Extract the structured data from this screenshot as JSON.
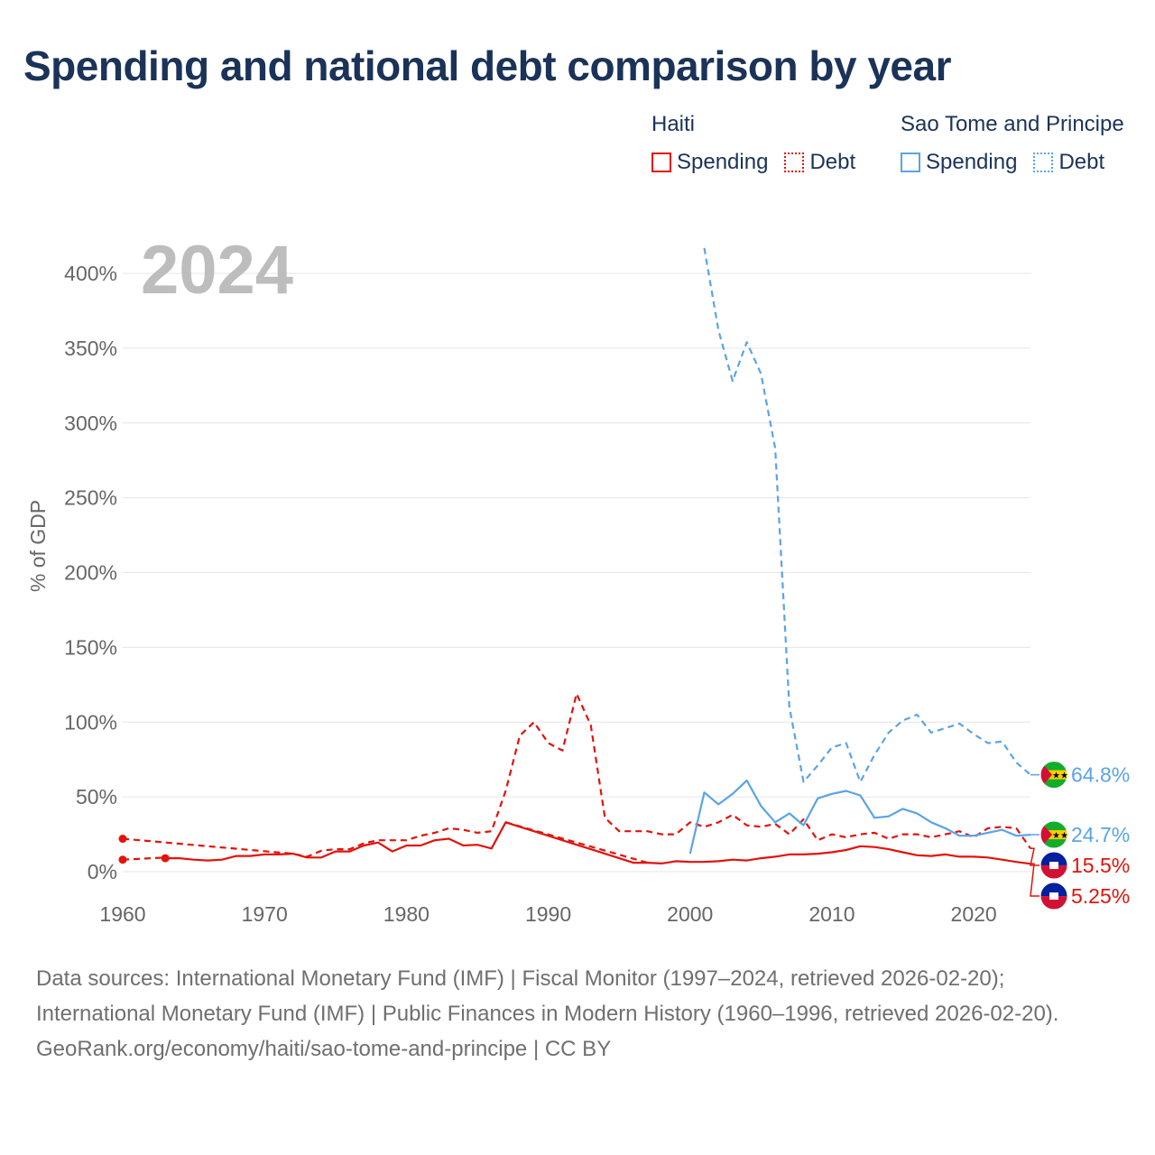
{
  "chart_data": {
    "type": "line",
    "title": "Spending and national debt comparison by year",
    "year_watermark": "2024",
    "ylabel": "% of GDP",
    "xlabel": "",
    "xlim": [
      1960,
      2024
    ],
    "ylim": [
      0,
      400
    ],
    "x_ticks": [
      1960,
      1970,
      1980,
      1990,
      2000,
      2010,
      2020
    ],
    "x_tick_labels": [
      "1960",
      "1970",
      "1980",
      "1990",
      "2000",
      "2010",
      "2020"
    ],
    "y_ticks": [
      0,
      50,
      100,
      150,
      200,
      250,
      300,
      350,
      400
    ],
    "y_tick_labels": [
      "0%",
      "50%",
      "100%",
      "150%",
      "200%",
      "250%",
      "300%",
      "350%",
      "400%"
    ],
    "grid": true,
    "legend": {
      "placement": "top-right",
      "groups": [
        {
          "country": "Haiti",
          "items": [
            "Spending",
            "Debt"
          ],
          "color": "#e3120b"
        },
        {
          "country": "Sao Tome and Principe",
          "items": [
            "Spending",
            "Debt"
          ],
          "color": "#5ba3e6"
        }
      ]
    },
    "series": [
      {
        "name": "Haiti Debt",
        "country": "Haiti",
        "metric": "Debt",
        "style": "dashed",
        "color": "#e3120b",
        "x": [
          1960,
          1972,
          1973,
          1974,
          1975,
          1976,
          1977,
          1978,
          1979,
          1980,
          1981,
          1982,
          1983,
          1984,
          1985,
          1986,
          1987,
          1988,
          1989,
          1990,
          1991,
          1992,
          1993,
          1994,
          1995,
          1996,
          1997,
          1998,
          1999,
          2000,
          2001,
          2002,
          2003,
          2004,
          2005,
          2006,
          2007,
          2008,
          2009,
          2010,
          2011,
          2012,
          2013,
          2014,
          2015,
          2016,
          2017,
          2018,
          2019,
          2020,
          2021,
          2022,
          2023,
          2024
        ],
        "y": [
          22,
          12,
          10,
          14,
          15,
          15,
          19,
          21,
          21,
          21,
          24,
          26,
          29,
          28,
          26,
          27,
          54,
          91,
          100,
          86,
          81,
          119,
          98,
          36,
          27,
          27,
          27,
          25,
          25,
          33,
          30,
          33,
          38,
          31,
          30,
          32,
          25,
          35,
          21,
          25,
          23,
          25,
          26,
          22,
          25,
          25,
          23,
          25,
          27,
          23,
          29,
          30,
          29,
          15.5
        ],
        "end_label": "15.5%",
        "markers_x": [
          1960
        ]
      },
      {
        "name": "Haiti Debt (gap)",
        "country": "Haiti",
        "metric": "Debt",
        "style": "dashed",
        "color": "#e3120b",
        "x": [
          1987,
          1997
        ],
        "y": [
          33,
          6
        ]
      },
      {
        "name": "Haiti Spending",
        "country": "Haiti",
        "metric": "Spending",
        "style": "solid",
        "color": "#e3120b",
        "x": [
          1963,
          1964,
          1965,
          1966,
          1967,
          1968,
          1969,
          1970,
          1971,
          1972,
          1973,
          1974,
          1975,
          1976,
          1977,
          1978,
          1979,
          1980,
          1981,
          1982,
          1983,
          1984,
          1985,
          1986,
          1987,
          1988,
          1989,
          1990,
          1991,
          1992,
          1993,
          1994,
          1995,
          1996,
          1997,
          1998,
          1999,
          2000,
          2001,
          2002,
          2003,
          2004,
          2005,
          2006,
          2007,
          2008,
          2009,
          2010,
          2011,
          2012,
          2013,
          2014,
          2015,
          2016,
          2017,
          2018,
          2019,
          2020,
          2021,
          2022,
          2023,
          2024
        ],
        "y": [
          9,
          9,
          8,
          7.5,
          8,
          10.5,
          10.5,
          11.5,
          11.5,
          12,
          9.5,
          9.5,
          13.5,
          13.5,
          17.5,
          19.5,
          13.5,
          17.5,
          17.5,
          21,
          22,
          17.5,
          18,
          15.5,
          33,
          30,
          27,
          24,
          21,
          18,
          15,
          12,
          9,
          6,
          6,
          5.5,
          7,
          6.5,
          6.5,
          7,
          8,
          7.5,
          9,
          10,
          11.5,
          11.5,
          12,
          13,
          14.5,
          17,
          16.5,
          15,
          13,
          11,
          10.5,
          11.5,
          10,
          10,
          9.5,
          8,
          6.5,
          5.25
        ],
        "end_label": "5.25%",
        "markers_x": [
          1963
        ]
      },
      {
        "name": "Haiti Spending (early)",
        "country": "Haiti",
        "metric": "Spending",
        "style": "dashed",
        "color": "#e3120b",
        "x": [
          1960,
          1963
        ],
        "y": [
          8,
          9.5
        ],
        "markers_x": [
          1960
        ]
      },
      {
        "name": "Sao Tome and Principe Debt",
        "country": "Sao Tome and Principe",
        "metric": "Debt",
        "style": "dashed",
        "color": "#5ba3e6",
        "x": [
          2001,
          2002,
          2003,
          2004,
          2005,
          2006,
          2007,
          2008,
          2009,
          2010,
          2011,
          2012,
          2013,
          2014,
          2015,
          2016,
          2017,
          2018,
          2019,
          2020,
          2021,
          2022,
          2023,
          2024
        ],
        "y": [
          417,
          362,
          328,
          354,
          333,
          283,
          110,
          60,
          71,
          83,
          86,
          60,
          78,
          93,
          101,
          105,
          93,
          96,
          99,
          92,
          86,
          87,
          73,
          64.8
        ],
        "end_label": "64.8%"
      },
      {
        "name": "Sao Tome and Principe Spending",
        "country": "Sao Tome and Principe",
        "metric": "Spending",
        "style": "solid",
        "color": "#5ba3e6",
        "x": [
          2000,
          2001,
          2002,
          2003,
          2004,
          2005,
          2006,
          2007,
          2008,
          2009,
          2010,
          2011,
          2012,
          2013,
          2014,
          2015,
          2016,
          2017,
          2018,
          2019,
          2020,
          2021,
          2022,
          2023,
          2024
        ],
        "y": [
          12,
          53,
          45,
          52,
          61,
          44,
          33,
          39,
          31,
          49,
          52,
          54,
          51,
          36,
          37,
          42,
          39,
          33,
          29,
          24,
          24,
          26,
          28,
          24,
          24.7
        ],
        "end_label": "24.7%"
      }
    ],
    "end_labels_order": [
      "64.8%",
      "24.7%",
      "15.5%",
      "5.25%"
    ]
  },
  "legend_text": {
    "haiti": "Haiti",
    "stp": "Sao Tome and Principe",
    "spending": "Spending",
    "debt": "Debt"
  },
  "colors": {
    "haiti": "#e3120b",
    "stp": "#5ba3e6",
    "title": "#1b3358"
  },
  "footer": {
    "sources": "Data sources: International Monetary Fund (IMF) | Fiscal Monitor (1997–2024, retrieved 2026-02-20); International Monetary Fund (IMF) | Public Finances in Modern History (1960–1996, retrieved 2026-02-20).",
    "credit": "GeoRank.org/economy/haiti/sao-tome-and-principe | CC BY"
  }
}
